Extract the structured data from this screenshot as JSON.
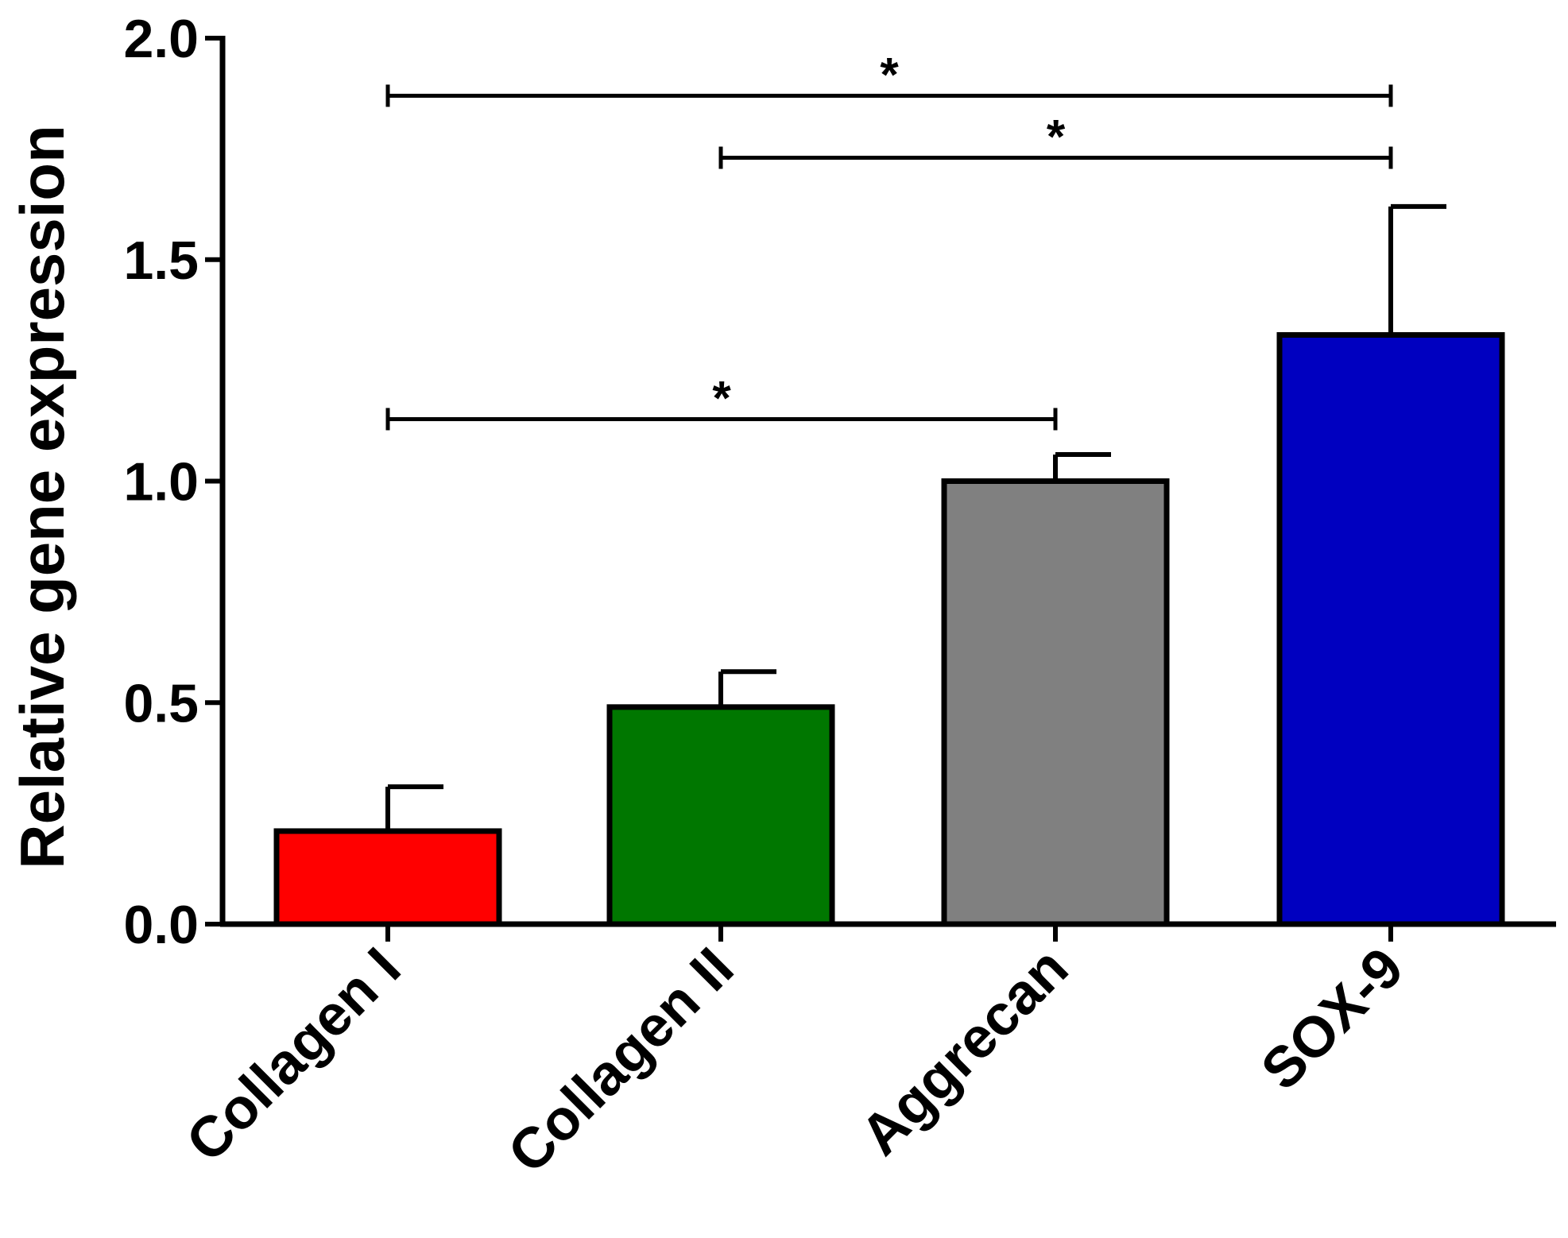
{
  "chart_data": {
    "type": "bar",
    "title": "",
    "xlabel": "",
    "ylabel": "Relative gene expression",
    "ylim": [
      0,
      2.0
    ],
    "yticks": [
      0.0,
      0.5,
      1.0,
      1.5,
      2.0
    ],
    "ytick_labels": [
      "0.0",
      "0.5",
      "1.0",
      "1.5",
      "2.0"
    ],
    "categories": [
      "Collagen I",
      "Collagen II",
      "Aggrecan",
      "SOX-9"
    ],
    "values": [
      0.21,
      0.49,
      1.0,
      1.33
    ],
    "errors": [
      0.1,
      0.08,
      0.06,
      0.29
    ],
    "colors": [
      "#ff0000",
      "#007700",
      "#808080",
      "#0000c0"
    ],
    "significance": [
      {
        "from": "Collagen I",
        "to": "SOX-9",
        "y": 1.87,
        "label": "*"
      },
      {
        "from": "Collagen II",
        "to": "SOX-9",
        "y": 1.73,
        "label": "*"
      },
      {
        "from": "Collagen I",
        "to": "Aggrecan",
        "y": 1.14,
        "label": "*"
      }
    ]
  }
}
